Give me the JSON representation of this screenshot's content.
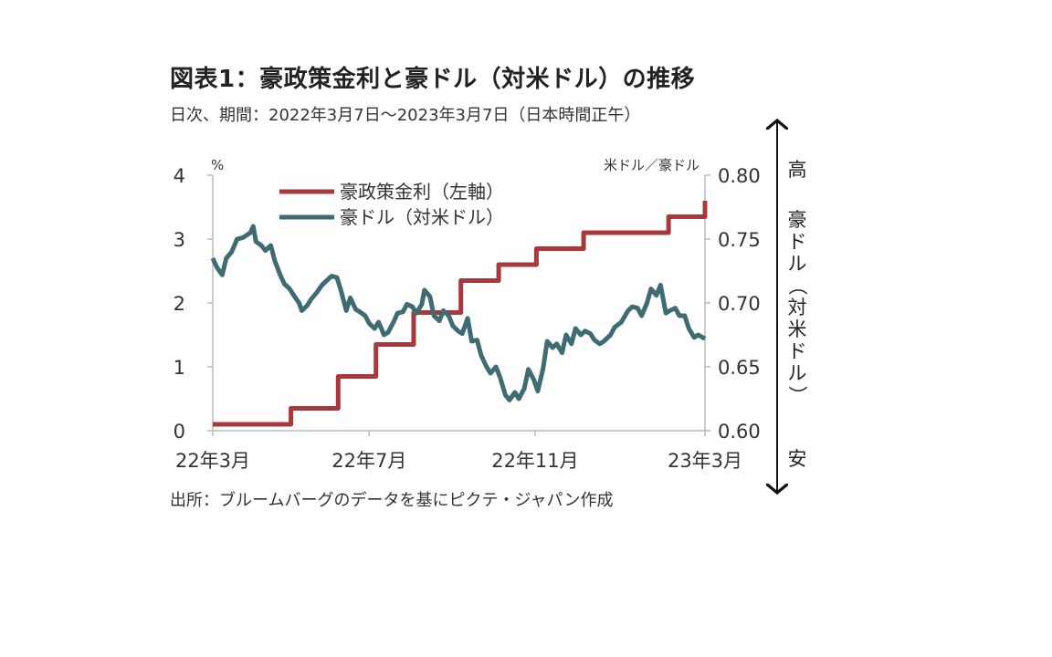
{
  "title": "図表1：豪政策金利と豪ドル（対米ドル）の推移",
  "subtitle": "日次、期間：2022年3月7日～2023年3月7日（日本時間正午）",
  "source": "出所：ブルームバーグのデータを基にピクテ・ジャパン作成",
  "colors": {
    "rate": "#a8383c",
    "aud": "#3f6b73",
    "axis": "#bbbbbb"
  },
  "side_labels": {
    "high": "高",
    "low": "安",
    "vertical": [
      "豪",
      "ド",
      "ル",
      "（",
      "対",
      "米",
      "ド",
      "ル",
      "）"
    ]
  },
  "chart_data": {
    "type": "line",
    "x_tick_labels": [
      "22年3月",
      "22年7月",
      "22年11月",
      "23年3月"
    ],
    "left_axis": {
      "unit_label": "%",
      "ylim": [
        0,
        4
      ],
      "ticks": [
        "0",
        "1",
        "2",
        "3",
        "4"
      ]
    },
    "right_axis": {
      "unit_label": "米ドル／豪ドル",
      "ylim": [
        0.6,
        0.8
      ],
      "ticks": [
        "0.60",
        "0.65",
        "0.70",
        "0.75",
        "0.80"
      ]
    },
    "series": [
      {
        "name": "豪政策金利（左軸）",
        "axis": "left",
        "step": true,
        "points": [
          [
            "2022-03-07",
            0.1
          ],
          [
            "2022-05-04",
            0.35
          ],
          [
            "2022-06-08",
            0.85
          ],
          [
            "2022-07-06",
            1.35
          ],
          [
            "2022-08-03",
            1.85
          ],
          [
            "2022-09-07",
            2.35
          ],
          [
            "2022-10-05",
            2.6
          ],
          [
            "2022-11-02",
            2.85
          ],
          [
            "2022-12-07",
            3.1
          ],
          [
            "2023-02-08",
            3.35
          ],
          [
            "2023-03-07",
            3.6
          ]
        ]
      },
      {
        "name": "豪ドル（対米ドル）",
        "axis": "right",
        "points": [
          [
            "2022-03-07",
            0.735
          ],
          [
            "2022-03-10",
            0.728
          ],
          [
            "2022-03-14",
            0.722
          ],
          [
            "2022-03-17",
            0.735
          ],
          [
            "2022-03-21",
            0.74
          ],
          [
            "2022-03-25",
            0.75
          ],
          [
            "2022-03-29",
            0.751
          ],
          [
            "2022-04-01",
            0.753
          ],
          [
            "2022-04-04",
            0.755
          ],
          [
            "2022-04-06",
            0.76
          ],
          [
            "2022-04-08",
            0.748
          ],
          [
            "2022-04-12",
            0.745
          ],
          [
            "2022-04-15",
            0.741
          ],
          [
            "2022-04-19",
            0.745
          ],
          [
            "2022-04-22",
            0.733
          ],
          [
            "2022-04-26",
            0.722
          ],
          [
            "2022-04-29",
            0.715
          ],
          [
            "2022-05-03",
            0.711
          ],
          [
            "2022-05-06",
            0.706
          ],
          [
            "2022-05-10",
            0.7
          ],
          [
            "2022-05-12",
            0.694
          ],
          [
            "2022-05-16",
            0.698
          ],
          [
            "2022-05-19",
            0.703
          ],
          [
            "2022-05-23",
            0.708
          ],
          [
            "2022-05-27",
            0.714
          ],
          [
            "2022-05-31",
            0.718
          ],
          [
            "2022-06-03",
            0.721
          ],
          [
            "2022-06-07",
            0.72
          ],
          [
            "2022-06-10",
            0.71
          ],
          [
            "2022-06-14",
            0.694
          ],
          [
            "2022-06-17",
            0.704
          ],
          [
            "2022-06-21",
            0.695
          ],
          [
            "2022-06-24",
            0.693
          ],
          [
            "2022-06-28",
            0.69
          ],
          [
            "2022-07-01",
            0.684
          ],
          [
            "2022-07-05",
            0.68
          ],
          [
            "2022-07-08",
            0.685
          ],
          [
            "2022-07-12",
            0.675
          ],
          [
            "2022-07-15",
            0.677
          ],
          [
            "2022-07-19",
            0.685
          ],
          [
            "2022-07-22",
            0.692
          ],
          [
            "2022-07-26",
            0.693
          ],
          [
            "2022-07-29",
            0.699
          ],
          [
            "2022-08-02",
            0.697
          ],
          [
            "2022-08-05",
            0.692
          ],
          [
            "2022-08-09",
            0.699
          ],
          [
            "2022-08-11",
            0.71
          ],
          [
            "2022-08-15",
            0.705
          ],
          [
            "2022-08-18",
            0.69
          ],
          [
            "2022-08-22",
            0.686
          ],
          [
            "2022-08-25",
            0.694
          ],
          [
            "2022-08-29",
            0.69
          ],
          [
            "2022-09-01",
            0.682
          ],
          [
            "2022-09-05",
            0.678
          ],
          [
            "2022-09-08",
            0.676
          ],
          [
            "2022-09-12",
            0.688
          ],
          [
            "2022-09-15",
            0.67
          ],
          [
            "2022-09-19",
            0.671
          ],
          [
            "2022-09-22",
            0.659
          ],
          [
            "2022-09-26",
            0.65
          ],
          [
            "2022-09-29",
            0.645
          ],
          [
            "2022-10-03",
            0.65
          ],
          [
            "2022-10-06",
            0.642
          ],
          [
            "2022-10-10",
            0.628
          ],
          [
            "2022-10-13",
            0.624
          ],
          [
            "2022-10-17",
            0.63
          ],
          [
            "2022-10-20",
            0.625
          ],
          [
            "2022-10-24",
            0.633
          ],
          [
            "2022-10-27",
            0.648
          ],
          [
            "2022-10-31",
            0.64
          ],
          [
            "2022-11-03",
            0.631
          ],
          [
            "2022-11-07",
            0.649
          ],
          [
            "2022-11-10",
            0.67
          ],
          [
            "2022-11-14",
            0.665
          ],
          [
            "2022-11-17",
            0.668
          ],
          [
            "2022-11-21",
            0.661
          ],
          [
            "2022-11-24",
            0.675
          ],
          [
            "2022-11-28",
            0.668
          ],
          [
            "2022-12-01",
            0.68
          ],
          [
            "2022-12-05",
            0.675
          ],
          [
            "2022-12-08",
            0.678
          ],
          [
            "2022-12-12",
            0.676
          ],
          [
            "2022-12-15",
            0.671
          ],
          [
            "2022-12-19",
            0.668
          ],
          [
            "2022-12-22",
            0.67
          ],
          [
            "2022-12-27",
            0.675
          ],
          [
            "2022-12-30",
            0.681
          ],
          [
            "2023-01-04",
            0.685
          ],
          [
            "2023-01-09",
            0.694
          ],
          [
            "2023-01-12",
            0.697
          ],
          [
            "2023-01-16",
            0.696
          ],
          [
            "2023-01-19",
            0.69
          ],
          [
            "2023-01-23",
            0.7
          ],
          [
            "2023-01-26",
            0.711
          ],
          [
            "2023-01-30",
            0.706
          ],
          [
            "2023-02-02",
            0.714
          ],
          [
            "2023-02-06",
            0.692
          ],
          [
            "2023-02-09",
            0.694
          ],
          [
            "2023-02-13",
            0.696
          ],
          [
            "2023-02-16",
            0.69
          ],
          [
            "2023-02-20",
            0.69
          ],
          [
            "2023-02-23",
            0.68
          ],
          [
            "2023-02-27",
            0.673
          ],
          [
            "2023-03-02",
            0.675
          ],
          [
            "2023-03-07",
            0.672
          ]
        ]
      }
    ]
  }
}
